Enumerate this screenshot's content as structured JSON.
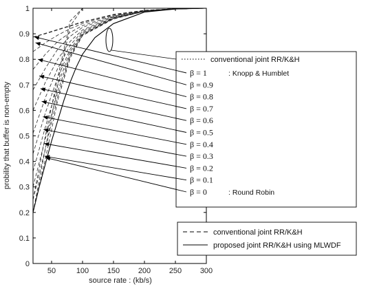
{
  "chart_data": {
    "type": "line",
    "xlabel": "source rate :    (kb/s)",
    "ylabel": "probility that buffer is non-empty",
    "xlim": [
      20,
      300
    ],
    "ylim": [
      0,
      1
    ],
    "xticks": [
      "50",
      "100",
      "150",
      "200",
      "250",
      "300"
    ],
    "yticks": [
      "0",
      "0.1",
      "0.2",
      "0.3",
      "0.4",
      "0.5",
      "0.6",
      "0.7",
      "0.8",
      "0.9",
      "1"
    ],
    "grid": false,
    "legend_top": {
      "entries": [
        {
          "style": "dotted",
          "label": "conventional joint RR/K&H"
        }
      ],
      "beta_labels": [
        {
          "beta": "β = 1",
          "note": ": Knopp & Humblet"
        },
        {
          "beta": "β = 0.9",
          "note": ""
        },
        {
          "beta": "β = 0.8",
          "note": ""
        },
        {
          "beta": "β = 0.7",
          "note": ""
        },
        {
          "beta": "β = 0.6",
          "note": ""
        },
        {
          "beta": "β = 0.5",
          "note": ""
        },
        {
          "beta": "β = 0.4",
          "note": ""
        },
        {
          "beta": "β = 0.3",
          "note": ""
        },
        {
          "beta": "β = 0.2",
          "note": ""
        },
        {
          "beta": "β = 0.1",
          "note": ""
        },
        {
          "beta": "β = 0",
          "note": ": Round Robin"
        }
      ]
    },
    "legend_bottom": {
      "entries": [
        {
          "style": "dashed",
          "label": "conventional joint RR/K&H"
        },
        {
          "style": "solid",
          "label": "proposed joint RR/K&H using MLWDF"
        }
      ]
    },
    "series": [
      {
        "beta": 1.0,
        "x": [
          20,
          40,
          60,
          80,
          100,
          150,
          200,
          250,
          300
        ],
        "y": [
          0.887,
          0.9,
          0.915,
          0.93,
          0.945,
          0.975,
          0.992,
          0.998,
          1.0
        ]
      },
      {
        "beta": 0.9,
        "x": [
          20,
          40,
          60,
          80,
          100,
          150,
          200,
          250,
          300
        ],
        "y": [
          0.83,
          0.865,
          0.895,
          0.92,
          0.94,
          0.973,
          0.991,
          0.998,
          1.0
        ]
      },
      {
        "beta": 0.8,
        "x": [
          20,
          40,
          60,
          80,
          100,
          150,
          200,
          250,
          300
        ],
        "y": [
          0.76,
          0.82,
          0.87,
          0.905,
          0.932,
          0.97,
          0.99,
          0.998,
          1.0
        ]
      },
      {
        "beta": 0.7,
        "x": [
          20,
          40,
          60,
          80,
          100,
          150,
          200,
          250,
          300
        ],
        "y": [
          0.68,
          0.765,
          0.84,
          0.89,
          0.925,
          0.968,
          0.99,
          0.998,
          1.0
        ]
      },
      {
        "beta": 0.6,
        "x": [
          20,
          40,
          60,
          80,
          100,
          150,
          200,
          250,
          300
        ],
        "y": [
          0.6,
          0.71,
          0.8,
          0.87,
          0.915,
          0.966,
          0.99,
          0.998,
          1.0
        ]
      },
      {
        "beta": 0.5,
        "x": [
          20,
          40,
          60,
          80,
          100,
          150,
          200,
          250,
          300
        ],
        "y": [
          0.51,
          0.65,
          0.765,
          0.855,
          0.91,
          0.964,
          0.989,
          0.997,
          1.0
        ]
      },
      {
        "beta": 0.4,
        "x": [
          20,
          40,
          60,
          80,
          100,
          150,
          200,
          250,
          300
        ],
        "y": [
          0.43,
          0.59,
          0.73,
          0.84,
          0.905,
          0.962,
          0.989,
          0.997,
          1.0
        ]
      },
      {
        "beta": 0.3,
        "x": [
          20,
          40,
          60,
          80,
          100,
          150,
          200,
          250,
          300
        ],
        "y": [
          0.36,
          0.535,
          0.7,
          0.83,
          0.9,
          0.961,
          0.988,
          0.997,
          1.0
        ]
      },
      {
        "beta": 0.2,
        "x": [
          20,
          40,
          60,
          80,
          100,
          150,
          200,
          250,
          300
        ],
        "y": [
          0.3,
          0.49,
          0.675,
          0.82,
          0.898,
          0.96,
          0.988,
          0.997,
          1.0
        ]
      },
      {
        "beta": 0.1,
        "x": [
          20,
          40,
          60,
          80,
          100,
          150,
          200,
          250,
          300
        ],
        "y": [
          0.25,
          0.45,
          0.655,
          0.812,
          0.895,
          0.959,
          0.988,
          0.997,
          1.0
        ]
      },
      {
        "beta": 0.0,
        "x": [
          20,
          40,
          60,
          80,
          100,
          150,
          200,
          250,
          300
        ],
        "y": [
          0.2,
          0.41,
          0.64,
          0.805,
          0.893,
          0.958,
          0.988,
          0.997,
          1.0
        ]
      }
    ],
    "dashed_series": [
      {
        "x": [
          20,
          40,
          60,
          80,
          100,
          150,
          200,
          250,
          300
        ],
        "y": [
          0.887,
          0.902,
          0.917,
          0.932,
          0.947,
          0.976,
          0.992,
          0.998,
          1.0
        ]
      },
      {
        "x": [
          20,
          40,
          60,
          80,
          100
        ],
        "y": [
          0.2,
          0.45,
          0.7,
          0.93,
          1.0
        ]
      },
      {
        "x": [
          20,
          40,
          60,
          80,
          100
        ],
        "y": [
          0.25,
          0.5,
          0.73,
          0.95,
          1.0
        ]
      }
    ],
    "solid_series": {
      "x": [
        20,
        30,
        40,
        50,
        60,
        70,
        80,
        90,
        100,
        120,
        150,
        200,
        250,
        300
      ],
      "y": [
        0.2,
        0.3,
        0.39,
        0.48,
        0.56,
        0.64,
        0.71,
        0.77,
        0.82,
        0.885,
        0.94,
        0.985,
        0.997,
        1.0
      ]
    },
    "arrow_targets": [
      {
        "beta": 1.0,
        "x": 22,
        "y": 0.888
      },
      {
        "beta": 0.9,
        "x": 24,
        "y": 0.865
      },
      {
        "beta": 0.8,
        "x": 28,
        "y": 0.8
      },
      {
        "beta": 0.7,
        "x": 30,
        "y": 0.735
      },
      {
        "beta": 0.6,
        "x": 32,
        "y": 0.685
      },
      {
        "beta": 0.5,
        "x": 34,
        "y": 0.635
      },
      {
        "beta": 0.4,
        "x": 36,
        "y": 0.575
      },
      {
        "beta": 0.3,
        "x": 37,
        "y": 0.525
      },
      {
        "beta": 0.2,
        "x": 38,
        "y": 0.47
      },
      {
        "beta": 0.1,
        "x": 39,
        "y": 0.42
      },
      {
        "beta": 0.0,
        "x": 40,
        "y": 0.415
      }
    ]
  }
}
